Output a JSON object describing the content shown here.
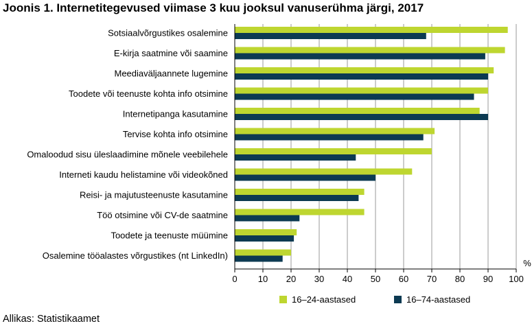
{
  "title": "Joonis 1. Internetitegevused viimase 3 kuu jooksul vanuserühma järgi, 2017",
  "source": "Allikas: Statistikaamet",
  "colors": {
    "series_young": "#bed630",
    "series_all": "#0c3a52",
    "grid": "#9a9a9a",
    "axis": "#000000"
  },
  "chart_data": {
    "type": "bar",
    "orientation": "horizontal",
    "title": "Joonis 1. Internetitegevused viimase 3 kuu jooksul vanuserühma järgi, 2017",
    "unit_label": "%",
    "xlim": [
      0,
      100
    ],
    "ticks": [
      0,
      10,
      20,
      30,
      40,
      50,
      60,
      70,
      80,
      90,
      100
    ],
    "grid": true,
    "legend_position": "bottom",
    "categories": [
      "Sotsiaalvõrgustikes osalemine",
      "E-kirja saatmine või saamine",
      "Meediaväljaannete lugemine",
      "Toodete või teenuste kohta info otsimine",
      "Internetipanga kasutamine",
      "Tervise kohta info otsimine",
      "Omaloodud sisu üleslaadimine mõnele veebilehele",
      "Interneti kaudu helistamine või videokõned",
      "Reisi- ja majutusteenuste kasutamine",
      "Töö otsimine või CV-de saatmine",
      "Toodete ja teenuste müümine",
      "Osalemine tööalastes võrgustikes (nt LinkedIn)"
    ],
    "series": [
      {
        "name": "16–24-aastased",
        "values": [
          97,
          96,
          92,
          90,
          87,
          71,
          70,
          63,
          46,
          46,
          22,
          20
        ]
      },
      {
        "name": "16–74-aastased",
        "values": [
          68,
          89,
          90,
          85,
          90,
          67,
          43,
          50,
          44,
          23,
          21,
          17
        ]
      }
    ]
  }
}
